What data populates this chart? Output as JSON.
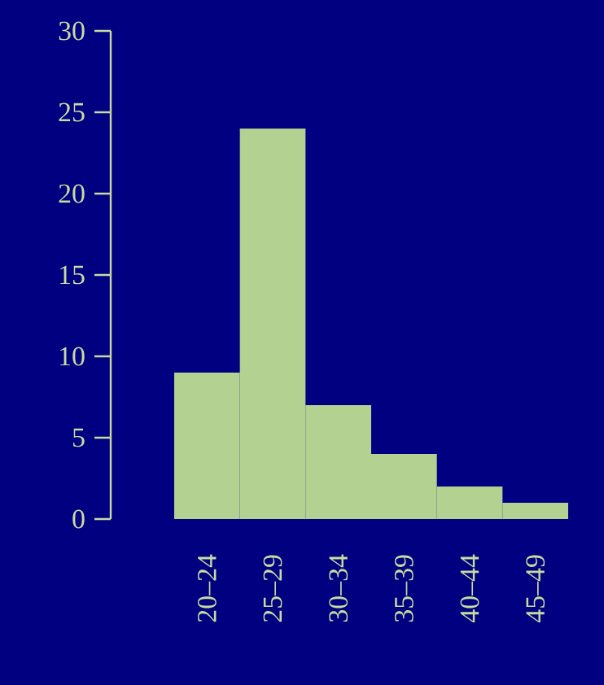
{
  "chart_data": {
    "type": "bar",
    "categories": [
      "20–24",
      "25–29",
      "30–34",
      "35–39",
      "40–44",
      "45–49"
    ],
    "values": [
      9,
      24,
      7,
      4,
      2,
      1
    ],
    "color": "#b3d291",
    "ylim": [
      0,
      30
    ],
    "yticks": [
      0,
      5,
      10,
      15,
      20,
      25,
      30
    ]
  }
}
